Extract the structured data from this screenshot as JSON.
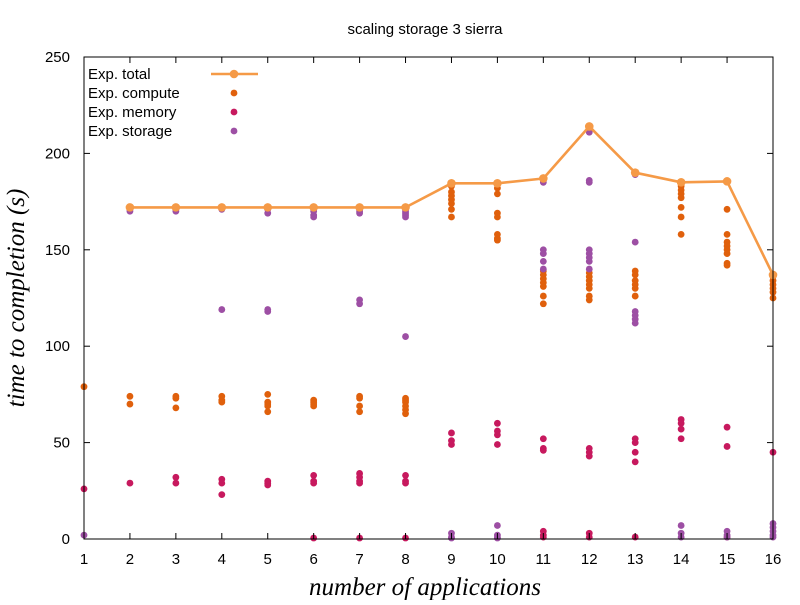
{
  "chart_data": {
    "type": "scatter",
    "title": "scaling storage 3 sierra",
    "xlabel": "number of applications",
    "ylabel": "time to completion (s)",
    "xlim": [
      1,
      16
    ],
    "ylim": [
      0,
      250
    ],
    "x_ticks": [
      1,
      2,
      3,
      4,
      5,
      6,
      7,
      8,
      9,
      10,
      11,
      12,
      13,
      14,
      15,
      16
    ],
    "y_ticks": [
      0,
      50,
      100,
      150,
      200,
      250
    ],
    "grid": false,
    "legend_position": "top-left",
    "series": [
      {
        "name": "Exp.  total",
        "style": "line+points",
        "color": "#f59a47",
        "points": [
          [
            2,
            172
          ],
          [
            3,
            172
          ],
          [
            4,
            172
          ],
          [
            5,
            172
          ],
          [
            6,
            172
          ],
          [
            7,
            172
          ],
          [
            8,
            172
          ],
          [
            9,
            184.5
          ],
          [
            10,
            184.5
          ],
          [
            11,
            187
          ],
          [
            12,
            214
          ],
          [
            13,
            190
          ],
          [
            14,
            185
          ],
          [
            15,
            185.5
          ],
          [
            16,
            137
          ]
        ]
      },
      {
        "name": "Exp.  compute",
        "style": "points",
        "color": "#e0600c",
        "points": [
          [
            1,
            79
          ],
          [
            2,
            74
          ],
          [
            2,
            70
          ],
          [
            3,
            74
          ],
          [
            3,
            73
          ],
          [
            3,
            68
          ],
          [
            4,
            74
          ],
          [
            4,
            72
          ],
          [
            4,
            71
          ],
          [
            5,
            75
          ],
          [
            5,
            71
          ],
          [
            5,
            70
          ],
          [
            5,
            69
          ],
          [
            5,
            66
          ],
          [
            6,
            72
          ],
          [
            6,
            71
          ],
          [
            6,
            70
          ],
          [
            6,
            69
          ],
          [
            7,
            74
          ],
          [
            7,
            73
          ],
          [
            7,
            69
          ],
          [
            7,
            66
          ],
          [
            8,
            73
          ],
          [
            8,
            72
          ],
          [
            8,
            71
          ],
          [
            8,
            69
          ],
          [
            8,
            67
          ],
          [
            8,
            65
          ],
          [
            9,
            183
          ],
          [
            9,
            180
          ],
          [
            9,
            178
          ],
          [
            9,
            176
          ],
          [
            9,
            174
          ],
          [
            9,
            171
          ],
          [
            9,
            167
          ],
          [
            10,
            182
          ],
          [
            10,
            179
          ],
          [
            10,
            169
          ],
          [
            10,
            167
          ],
          [
            10,
            158
          ],
          [
            10,
            156
          ],
          [
            10,
            155
          ],
          [
            11,
            139
          ],
          [
            11,
            137
          ],
          [
            11,
            135
          ],
          [
            11,
            133
          ],
          [
            11,
            131
          ],
          [
            11,
            126
          ],
          [
            11,
            122
          ],
          [
            12,
            138
          ],
          [
            12,
            136
          ],
          [
            12,
            134
          ],
          [
            12,
            132
          ],
          [
            12,
            130
          ],
          [
            12,
            126
          ],
          [
            12,
            124
          ],
          [
            13,
            139
          ],
          [
            13,
            137
          ],
          [
            13,
            134
          ],
          [
            13,
            132
          ],
          [
            13,
            130
          ],
          [
            13,
            126
          ],
          [
            14,
            183
          ],
          [
            14,
            181
          ],
          [
            14,
            179
          ],
          [
            14,
            177
          ],
          [
            14,
            172
          ],
          [
            14,
            167
          ],
          [
            14,
            158
          ],
          [
            15,
            171
          ],
          [
            15,
            158
          ],
          [
            15,
            154
          ],
          [
            15,
            152
          ],
          [
            15,
            150
          ],
          [
            15,
            148
          ],
          [
            15,
            143
          ],
          [
            15,
            142
          ],
          [
            16,
            136
          ],
          [
            16,
            134
          ],
          [
            16,
            132
          ],
          [
            16,
            130
          ],
          [
            16,
            128
          ],
          [
            16,
            125
          ]
        ]
      },
      {
        "name": "Exp.  memory",
        "style": "points",
        "color": "#c7195e",
        "points": [
          [
            1,
            26
          ],
          [
            2,
            29
          ],
          [
            3,
            32
          ],
          [
            3,
            29
          ],
          [
            4,
            31
          ],
          [
            4,
            29
          ],
          [
            4,
            23
          ],
          [
            5,
            30
          ],
          [
            5,
            29
          ],
          [
            5,
            28
          ],
          [
            6,
            33
          ],
          [
            6,
            30
          ],
          [
            6,
            29
          ],
          [
            6,
            0.5
          ],
          [
            7,
            34
          ],
          [
            7,
            32
          ],
          [
            7,
            30
          ],
          [
            7,
            29
          ],
          [
            7,
            0.5
          ],
          [
            8,
            33
          ],
          [
            8,
            30
          ],
          [
            8,
            29
          ],
          [
            8,
            0.5
          ],
          [
            9,
            55
          ],
          [
            9,
            51
          ],
          [
            9,
            49
          ],
          [
            10,
            60
          ],
          [
            10,
            56
          ],
          [
            10,
            54
          ],
          [
            10,
            49
          ],
          [
            11,
            52
          ],
          [
            11,
            47
          ],
          [
            11,
            46
          ],
          [
            11,
            4
          ],
          [
            11,
            2
          ],
          [
            11,
            1
          ],
          [
            12,
            47
          ],
          [
            12,
            45
          ],
          [
            12,
            43
          ],
          [
            12,
            3
          ],
          [
            12,
            1
          ],
          [
            13,
            52
          ],
          [
            13,
            50
          ],
          [
            13,
            45
          ],
          [
            13,
            40
          ],
          [
            13,
            1
          ],
          [
            14,
            62
          ],
          [
            14,
            60
          ],
          [
            14,
            57
          ],
          [
            14,
            52
          ],
          [
            15,
            58
          ],
          [
            15,
            48
          ],
          [
            15,
            1
          ],
          [
            16,
            45
          ]
        ]
      },
      {
        "name": "Exp.  storage",
        "style": "points",
        "color": "#9d4fa4",
        "points": [
          [
            1,
            2
          ],
          [
            2,
            171
          ],
          [
            2,
            170
          ],
          [
            3,
            172
          ],
          [
            3,
            171
          ],
          [
            3,
            170
          ],
          [
            4,
            172
          ],
          [
            4,
            171
          ],
          [
            4,
            119
          ],
          [
            5,
            172
          ],
          [
            5,
            171
          ],
          [
            5,
            169
          ],
          [
            5,
            119
          ],
          [
            5,
            118
          ],
          [
            6,
            171
          ],
          [
            6,
            170
          ],
          [
            6,
            168
          ],
          [
            6,
            167
          ],
          [
            7,
            171
          ],
          [
            7,
            170
          ],
          [
            7,
            169
          ],
          [
            7,
            124
          ],
          [
            7,
            122
          ],
          [
            8,
            171
          ],
          [
            8,
            170
          ],
          [
            8,
            169
          ],
          [
            8,
            168
          ],
          [
            8,
            167
          ],
          [
            8,
            105
          ],
          [
            9,
            3
          ],
          [
            9,
            1
          ],
          [
            9,
            0.5
          ],
          [
            10,
            7
          ],
          [
            10,
            2
          ],
          [
            10,
            1
          ],
          [
            10,
            0.5
          ],
          [
            11,
            186
          ],
          [
            11,
            185
          ],
          [
            11,
            150
          ],
          [
            11,
            148
          ],
          [
            11,
            144
          ],
          [
            11,
            140
          ],
          [
            12,
            211
          ],
          [
            12,
            186
          ],
          [
            12,
            185
          ],
          [
            12,
            150
          ],
          [
            12,
            148
          ],
          [
            12,
            146
          ],
          [
            12,
            144
          ],
          [
            12,
            140
          ],
          [
            13,
            189
          ],
          [
            13,
            154
          ],
          [
            13,
            118
          ],
          [
            13,
            116
          ],
          [
            13,
            114
          ],
          [
            13,
            112
          ],
          [
            14,
            185
          ],
          [
            14,
            7
          ],
          [
            14,
            3
          ],
          [
            14,
            1
          ],
          [
            15,
            4
          ],
          [
            15,
            2
          ],
          [
            15,
            1
          ],
          [
            16,
            8
          ],
          [
            16,
            6
          ],
          [
            16,
            4
          ],
          [
            16,
            2
          ],
          [
            16,
            1
          ]
        ]
      }
    ]
  }
}
